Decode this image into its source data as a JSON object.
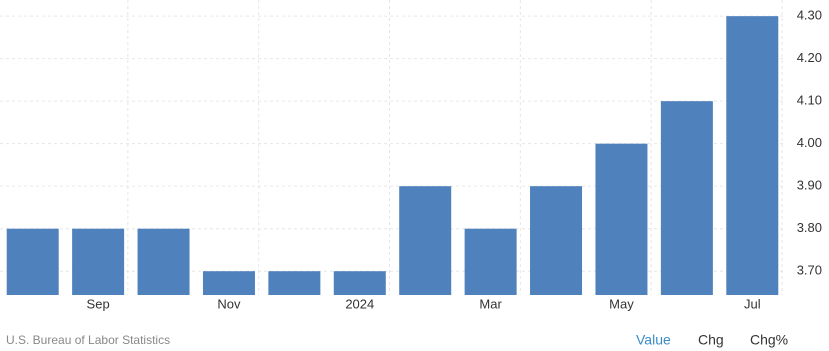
{
  "chart_data": {
    "type": "bar",
    "categories": [
      null,
      "Sep",
      null,
      "Nov",
      null,
      "2024",
      null,
      "Mar",
      null,
      "May",
      null,
      "Jul"
    ],
    "values": [
      3.8,
      3.8,
      3.8,
      3.7,
      3.7,
      3.7,
      3.9,
      3.8,
      3.9,
      4.0,
      4.1,
      4.3
    ],
    "color": "#4f81bd",
    "ylim": [
      3.644,
      4.338
    ],
    "yticks": [
      {
        "value": 3.7,
        "label": "3.70"
      },
      {
        "value": 3.8,
        "label": "3.80"
      },
      {
        "value": 3.9,
        "label": "3.90"
      },
      {
        "value": 4.0,
        "label": "4.00"
      },
      {
        "value": 4.1,
        "label": "4.10"
      },
      {
        "value": 4.2,
        "label": "4.20"
      },
      {
        "value": 4.3,
        "label": "4.30"
      }
    ],
    "grid": true
  },
  "footer": {
    "source": "U.S. Bureau of Labor Statistics",
    "tabs": [
      "Value",
      "Chg",
      "Chg%"
    ]
  }
}
